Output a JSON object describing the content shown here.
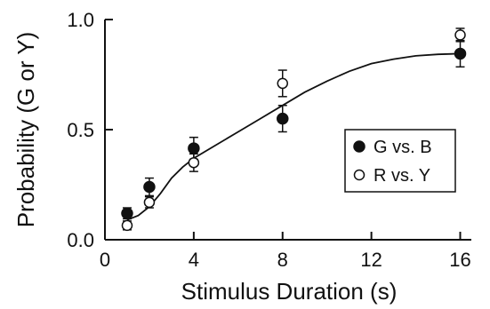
{
  "chart_data": {
    "type": "scatter",
    "title": "",
    "xlabel": "Stimulus Duration (s)",
    "ylabel": "Probability (G or Y)",
    "xlim": [
      0,
      16.5
    ],
    "ylim": [
      0,
      1.0
    ],
    "xticks": [
      0,
      4,
      8,
      12,
      16
    ],
    "yticks": [
      0.0,
      0.5,
      1.0
    ],
    "xtick_labels": [
      "0",
      "4",
      "8",
      "12",
      "16"
    ],
    "ytick_labels": [
      "0.0",
      "0.5",
      "1.0"
    ],
    "grid": false,
    "legend_position": "center-right",
    "series": [
      {
        "name": "G vs. B",
        "marker": "filled-circle",
        "color": "#111111",
        "x": [
          1,
          2,
          4,
          8,
          16
        ],
        "y": [
          0.12,
          0.24,
          0.415,
          0.55,
          0.845
        ],
        "err": [
          0.025,
          0.04,
          0.05,
          0.06,
          0.06
        ]
      },
      {
        "name": "R vs. Y",
        "marker": "open-circle",
        "color": "#111111",
        "x": [
          1,
          2,
          4,
          8,
          16
        ],
        "y": [
          0.065,
          0.17,
          0.35,
          0.71,
          0.93
        ],
        "err": [
          0.02,
          0.025,
          0.04,
          0.06,
          0.03
        ]
      }
    ],
    "fit_curve": {
      "x": [
        1,
        1.5,
        2,
        2.5,
        3,
        3.5,
        4,
        5,
        6,
        7,
        8,
        9,
        10,
        11,
        12,
        13,
        14,
        15,
        16
      ],
      "y": [
        0.09,
        0.11,
        0.15,
        0.21,
        0.28,
        0.33,
        0.37,
        0.43,
        0.49,
        0.55,
        0.61,
        0.67,
        0.72,
        0.765,
        0.8,
        0.82,
        0.835,
        0.842,
        0.845
      ]
    }
  }
}
